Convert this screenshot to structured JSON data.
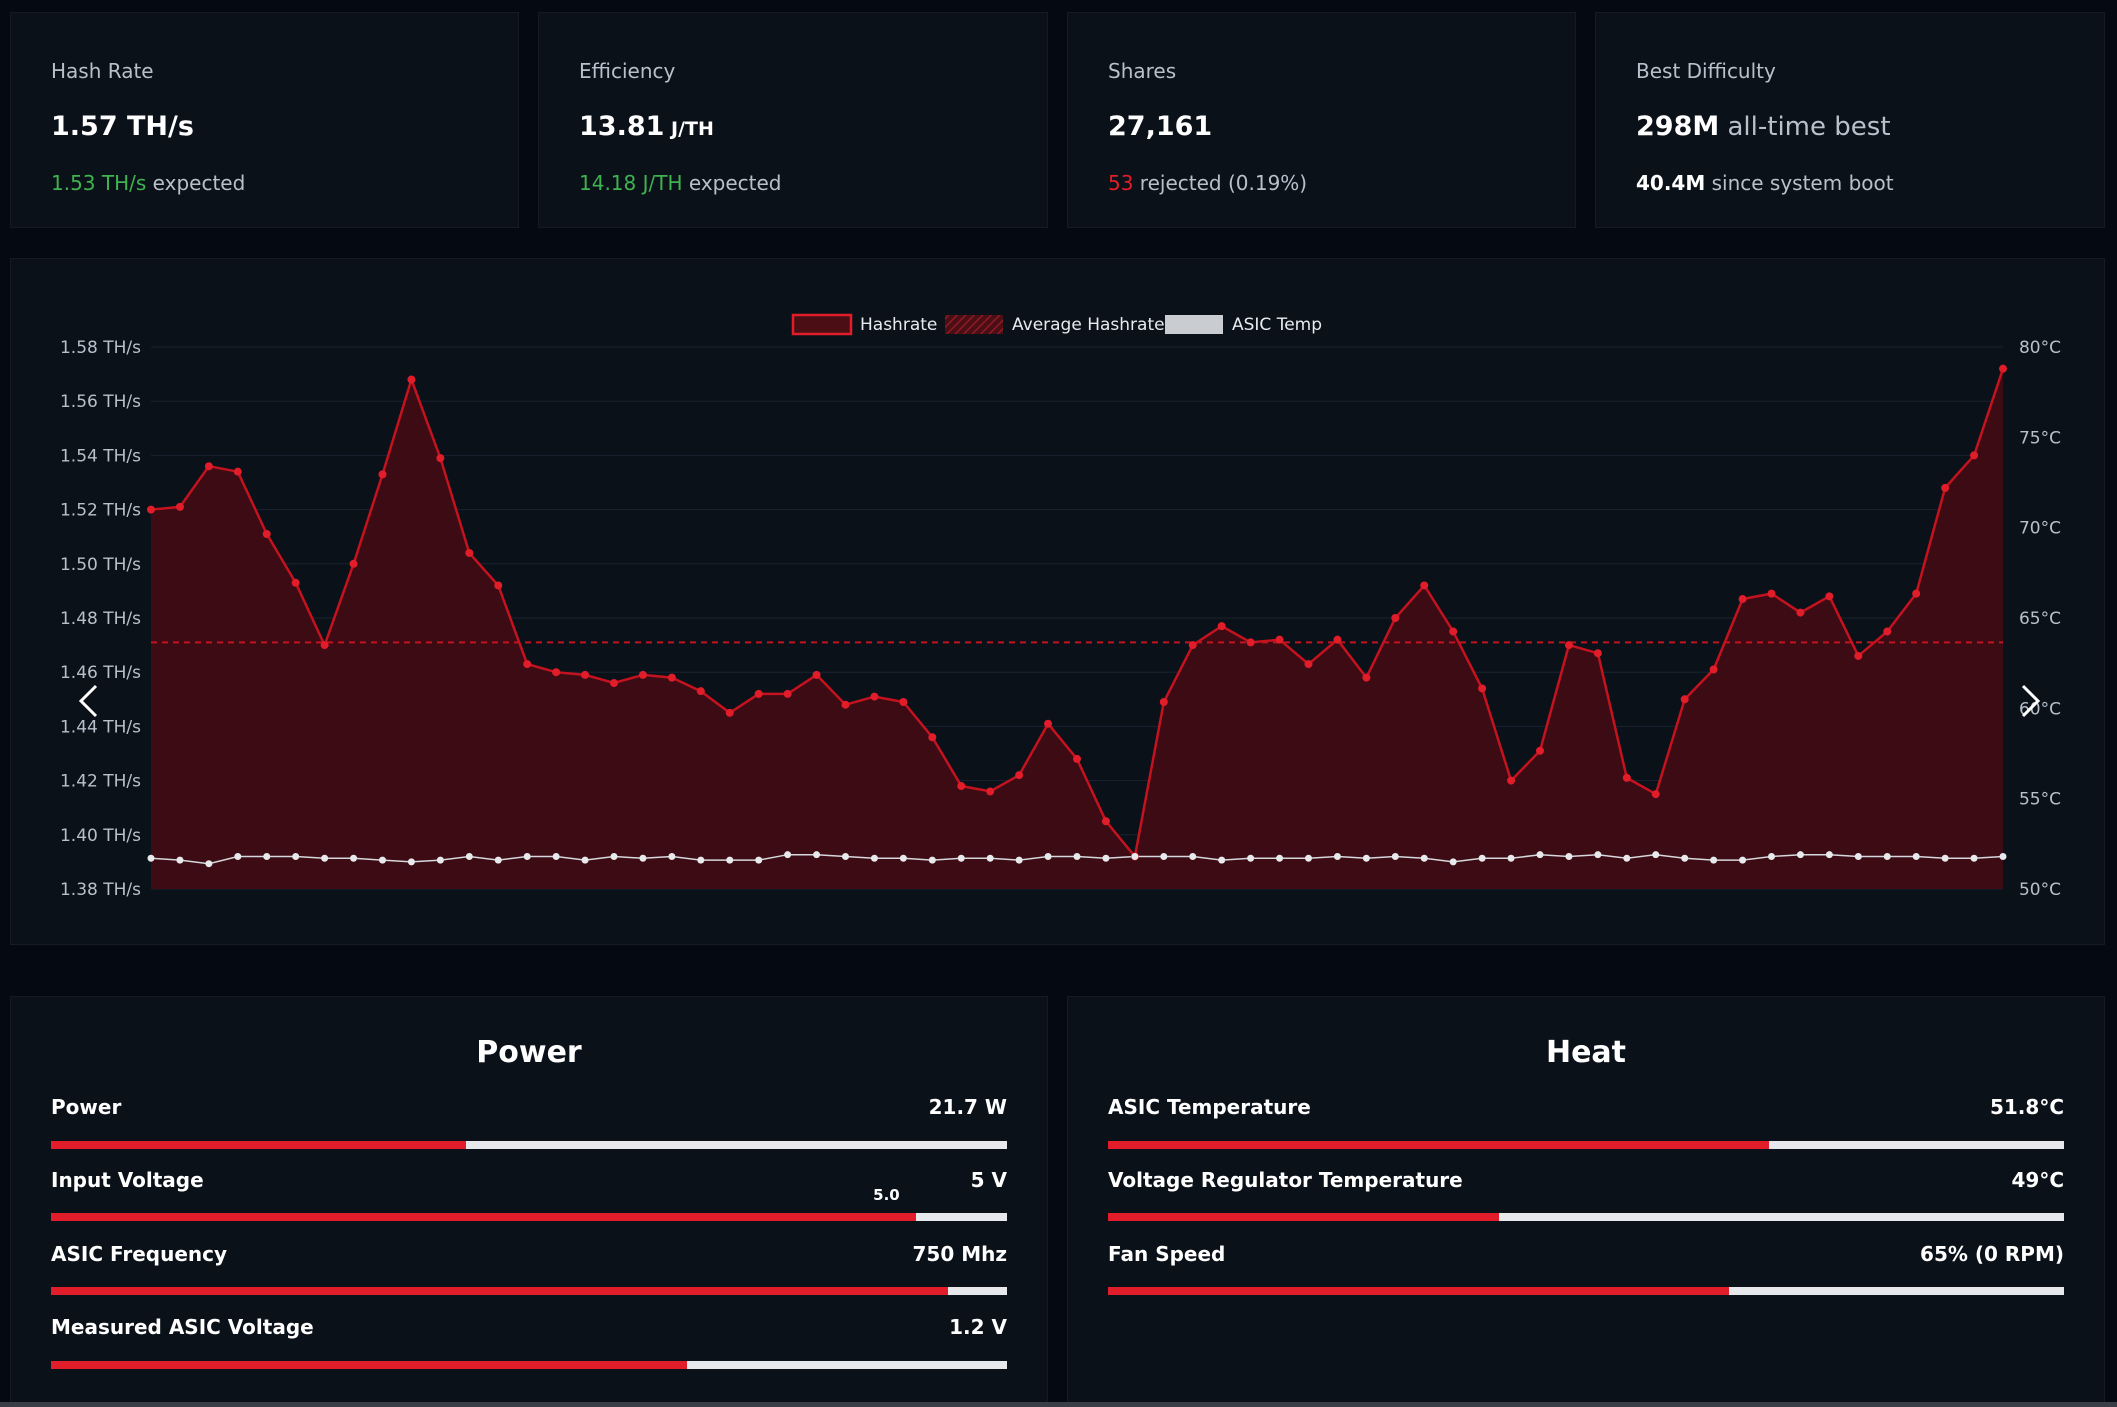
{
  "stats": [
    {
      "label": "Hash Rate",
      "value": "1.57 TH/s",
      "sub_highlight": "1.53 TH/s",
      "sub_text": " expected"
    },
    {
      "label": "Efficiency",
      "value": "13.81",
      "value_unit": " J/TH",
      "sub_highlight": "14.18 J/TH",
      "sub_text": " expected"
    },
    {
      "label": "Shares",
      "value": "27,161",
      "sub_highlight": "53",
      "sub_text": " rejected (0.19%)"
    },
    {
      "label": "Best Difficulty",
      "value": "298M",
      "value_muted": " all-time best",
      "sub_bold": "40.4M",
      "sub_text": " since system boot"
    }
  ],
  "chart_data": {
    "type": "line",
    "legend": [
      "Hashrate",
      "Average Hashrate",
      "ASIC Temp"
    ],
    "legend_position": "top-center",
    "y_left_ticks": [
      "1.58 TH/s",
      "1.56 TH/s",
      "1.54 TH/s",
      "1.52 TH/s",
      "1.50 TH/s",
      "1.48 TH/s",
      "1.46 TH/s",
      "1.44 TH/s",
      "1.42 TH/s",
      "1.40 TH/s",
      "1.38 TH/s"
    ],
    "y_right_ticks": [
      "80°C",
      "75°C",
      "70°C",
      "65°C",
      "60°C",
      "55°C",
      "50°C"
    ],
    "ylim_left": [
      1.38,
      1.58
    ],
    "ylim_right": [
      50,
      80
    ],
    "average_hashrate": 1.471,
    "series": [
      {
        "name": "Hashrate",
        "values": [
          1.52,
          1.521,
          1.536,
          1.534,
          1.511,
          1.493,
          1.47,
          1.5,
          1.533,
          1.568,
          1.539,
          1.504,
          1.492,
          1.463,
          1.46,
          1.459,
          1.456,
          1.459,
          1.458,
          1.453,
          1.445,
          1.452,
          1.452,
          1.459,
          1.448,
          1.451,
          1.449,
          1.436,
          1.418,
          1.416,
          1.422,
          1.441,
          1.428,
          1.405,
          1.392,
          1.449,
          1.47,
          1.477,
          1.471,
          1.472,
          1.463,
          1.472,
          1.458,
          1.48,
          1.492,
          1.475,
          1.454,
          1.42,
          1.431,
          1.47,
          1.467,
          1.421,
          1.415,
          1.45,
          1.461,
          1.487,
          1.489,
          1.482,
          1.488,
          1.466,
          1.475,
          1.489,
          1.528,
          1.54,
          1.572
        ]
      },
      {
        "name": "ASIC Temp",
        "values": [
          51.7,
          51.6,
          51.4,
          51.8,
          51.8,
          51.8,
          51.7,
          51.7,
          51.6,
          51.5,
          51.6,
          51.8,
          51.6,
          51.8,
          51.8,
          51.6,
          51.8,
          51.7,
          51.8,
          51.6,
          51.6,
          51.6,
          51.9,
          51.9,
          51.8,
          51.7,
          51.7,
          51.6,
          51.7,
          51.7,
          51.6,
          51.8,
          51.8,
          51.7,
          51.8,
          51.8,
          51.8,
          51.6,
          51.7,
          51.7,
          51.7,
          51.8,
          51.7,
          51.8,
          51.7,
          51.5,
          51.7,
          51.7,
          51.9,
          51.8,
          51.9,
          51.7,
          51.9,
          51.7,
          51.6,
          51.6,
          51.8,
          51.9,
          51.9,
          51.8,
          51.8,
          51.8,
          51.7,
          51.7,
          51.8
        ]
      }
    ],
    "grid": true
  },
  "power": {
    "title": "Power",
    "rows": [
      {
        "label": "Power",
        "value": "21.7 W",
        "fill": 0.434
      },
      {
        "label": "Input Voltage",
        "value": "5 V",
        "fill": 0.905,
        "marker": "5.0"
      },
      {
        "label": "ASIC Frequency",
        "value": "750 Mhz",
        "fill": 0.938
      },
      {
        "label": "Measured ASIC Voltage",
        "value": "1.2 V",
        "fill": 0.665
      }
    ]
  },
  "heat": {
    "title": "Heat",
    "rows": [
      {
        "label": "ASIC Temperature",
        "value": "51.8°C",
        "fill": 0.691
      },
      {
        "label": "Voltage Regulator Temperature",
        "value": "49°C",
        "fill": 0.409
      },
      {
        "label": "Fan Speed",
        "value": "65% (0 RPM)",
        "fill": 0.65
      }
    ]
  },
  "colors": {
    "accent": "#e11d2a",
    "green": "#3fb34f",
    "card": "#0b1119",
    "background": "#050a12"
  },
  "icons": {
    "prev": "chevron-left-icon",
    "next": "chevron-right-icon"
  }
}
